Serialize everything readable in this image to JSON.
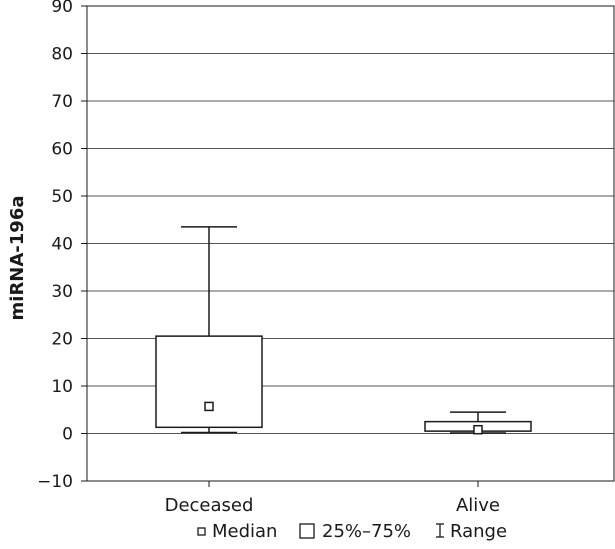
{
  "chart_data": {
    "type": "box",
    "ylabel": "miRNA-196a",
    "ylim": [
      -10,
      90
    ],
    "yticks": [
      90,
      80,
      70,
      60,
      50,
      40,
      30,
      20,
      10,
      0,
      -10
    ],
    "ytick_labels": [
      "90",
      "80",
      "70",
      "60",
      "50",
      "40",
      "30",
      "20",
      "10",
      "0",
      "−10"
    ],
    "grid": true,
    "categories": [
      "Deceased",
      "Alive"
    ],
    "boxes": [
      {
        "category": "Deceased",
        "min": 0.2,
        "q1": 1.3,
        "median": 5.7,
        "q3": 20.5,
        "max": 43.5
      },
      {
        "category": "Alive",
        "min": 0.1,
        "q1": 0.5,
        "median": 0.8,
        "q3": 2.5,
        "max": 4.5
      }
    ],
    "legend": {
      "position": "bottom",
      "items": [
        {
          "key": "median",
          "label": "Median"
        },
        {
          "key": "iqr",
          "label": "25%–75%"
        },
        {
          "key": "range",
          "label": "Range"
        }
      ]
    }
  }
}
